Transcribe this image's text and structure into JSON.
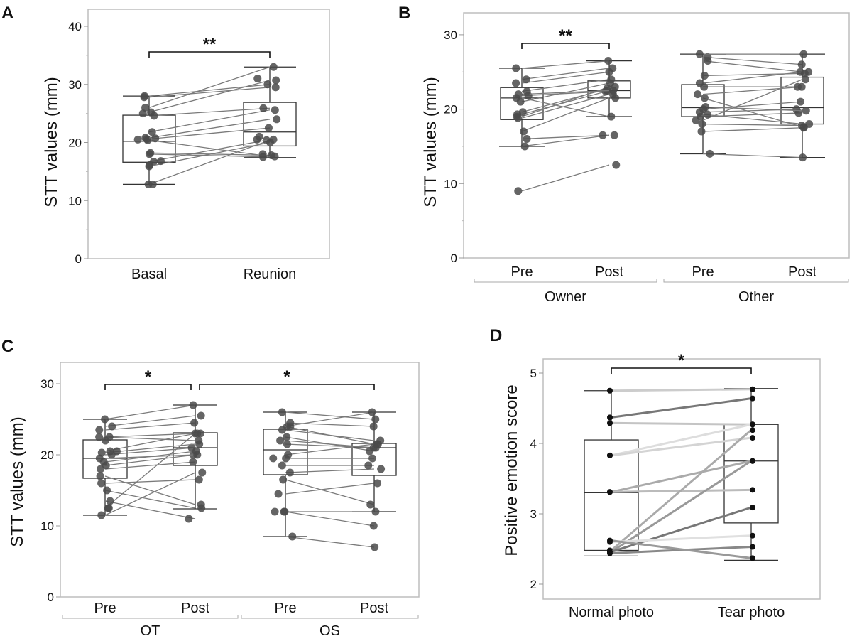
{
  "figure": {
    "panels": [
      "A",
      "B",
      "C",
      "D"
    ]
  },
  "chart_data": [
    {
      "panel": "A",
      "type": "box",
      "title": "",
      "xlabel": "",
      "ylabel": "STT values (mm)",
      "ylim": [
        0,
        42
      ],
      "yticks": [
        0,
        10,
        20,
        30,
        40
      ],
      "grid": false,
      "categories": [
        "Basal",
        "Reunion"
      ],
      "boxes": [
        {
          "category": "Basal",
          "whisker_low": 12.8,
          "q1": 16.6,
          "median": 20.2,
          "q3": 24.7,
          "whisker_high": 28.0
        },
        {
          "category": "Reunion",
          "whisker_low": 17.4,
          "q1": 19.4,
          "median": 21.8,
          "q3": 26.9,
          "whisker_high": 33.0
        }
      ],
      "paired": [
        [
          12.8,
          20.4
        ],
        [
          16.7,
          20.5
        ],
        [
          15.9,
          20.0
        ],
        [
          18.0,
          17.5
        ],
        [
          18.2,
          17.8
        ],
        [
          20.4,
          17.6
        ],
        [
          20.6,
          22.5
        ],
        [
          20.8,
          24.0
        ],
        [
          21.8,
          25.6
        ],
        [
          24.6,
          25.9
        ],
        [
          25.2,
          30.7
        ],
        [
          26.0,
          33.0
        ],
        [
          27.8,
          29.5
        ],
        [
          28.0,
          30.0
        ]
      ],
      "extra_points": [
        {
          "category": "Basal",
          "values": [
            12.8,
            16.1,
            16.8,
            20.7,
            20.5,
            25.0
          ]
        },
        {
          "category": "Reunion",
          "values": [
            21.0,
            31.0,
            20.5,
            18.0
          ]
        }
      ],
      "significance": [
        {
          "from": "Basal",
          "to": "Reunion",
          "label": "**"
        }
      ]
    },
    {
      "panel": "B",
      "type": "box",
      "title": "",
      "xlabel": "",
      "ylabel": "STT values (mm)",
      "ylim": [
        0,
        33
      ],
      "yticks": [
        0,
        10,
        20,
        30
      ],
      "grid": false,
      "categories": [
        "Pre",
        "Post",
        "Pre",
        "Post"
      ],
      "groups": [
        {
          "label": "Owner",
          "categories": [
            "Pre",
            "Post"
          ]
        },
        {
          "label": "Other",
          "categories": [
            "Pre",
            "Post"
          ]
        }
      ],
      "boxes": [
        {
          "category": "Owner Pre",
          "whisker_low": 15.0,
          "q1": 18.6,
          "median": 21.5,
          "q3": 22.9,
          "whisker_high": 25.5
        },
        {
          "category": "Owner Post",
          "whisker_low": 19.0,
          "q1": 21.5,
          "median": 22.5,
          "q3": 23.8,
          "whisker_high": 26.5
        },
        {
          "category": "Other Pre",
          "whisker_low": 14.0,
          "q1": 19.0,
          "median": 20.2,
          "q3": 23.3,
          "whisker_high": 27.4
        },
        {
          "category": "Other Post",
          "whisker_low": 13.5,
          "q1": 18.0,
          "median": 20.2,
          "q3": 24.3,
          "whisker_high": 27.4
        }
      ],
      "paired": [
        {
          "group": "Owner",
          "pairs": [
            [
              9.0,
              12.5
            ],
            [
              15.0,
              16.5
            ],
            [
              16.0,
              16.5
            ],
            [
              17.0,
              21.5
            ],
            [
              18.8,
              22.0
            ],
            [
              19.0,
              23.0
            ],
            [
              19.3,
              22.5
            ],
            [
              19.6,
              22.8
            ],
            [
              21.0,
              23.5
            ],
            [
              21.5,
              19.0
            ],
            [
              21.8,
              22.4
            ],
            [
              22.0,
              22.5
            ],
            [
              22.4,
              24.0
            ],
            [
              23.5,
              25.0
            ],
            [
              24.0,
              25.5
            ],
            [
              25.5,
              26.5
            ]
          ]
        },
        {
          "group": "Other",
          "pairs": [
            [
              14.0,
              13.5
            ],
            [
              17.0,
              17.5
            ],
            [
              18.0,
              17.8
            ],
            [
              18.5,
              24.0
            ],
            [
              19.0,
              19.5
            ],
            [
              19.3,
              18.0
            ],
            [
              19.6,
              20.0
            ],
            [
              20.0,
              21.0
            ],
            [
              20.3,
              19.8
            ],
            [
              21.5,
              17.6
            ],
            [
              22.0,
              23.0
            ],
            [
              23.0,
              23.0
            ],
            [
              23.5,
              25.0
            ],
            [
              24.5,
              24.8
            ],
            [
              26.5,
              25.0
            ],
            [
              27.0,
              26.0
            ],
            [
              27.4,
              27.4
            ]
          ]
        }
      ],
      "significance": [
        {
          "from": "Owner Pre",
          "to": "Owner Post",
          "label": "**"
        }
      ]
    },
    {
      "panel": "C",
      "type": "box",
      "title": "",
      "xlabel": "",
      "ylabel": "STT values (mm)",
      "ylim": [
        0,
        33
      ],
      "yticks": [
        0,
        10,
        20,
        30
      ],
      "grid": false,
      "categories": [
        "Pre",
        "Post",
        "Pre",
        "Post"
      ],
      "groups": [
        {
          "label": "OT",
          "categories": [
            "Pre",
            "Post"
          ]
        },
        {
          "label": "OS",
          "categories": [
            "Pre",
            "Post"
          ]
        }
      ],
      "boxes": [
        {
          "category": "OT Pre",
          "whisker_low": 11.5,
          "q1": 16.7,
          "median": 19.5,
          "q3": 22.1,
          "whisker_high": 25.0
        },
        {
          "category": "OT Post",
          "whisker_low": 12.4,
          "q1": 18.5,
          "median": 21.0,
          "q3": 23.1,
          "whisker_high": 27.0
        },
        {
          "category": "OS Pre",
          "whisker_low": 8.5,
          "q1": 17.2,
          "median": 20.7,
          "q3": 23.6,
          "whisker_high": 26.0
        },
        {
          "category": "OS Post",
          "whisker_low": 12.0,
          "q1": 17.1,
          "median": 21.0,
          "q3": 21.6,
          "whisker_high": 26.0
        }
      ],
      "paired": [
        {
          "group": "OT",
          "pairs": [
            [
              11.5,
              17.5
            ],
            [
              12.5,
              23.0
            ],
            [
              13.5,
              11.0
            ],
            [
              15.0,
              12.5
            ],
            [
              16.0,
              16.5
            ],
            [
              17.0,
              13.0
            ],
            [
              18.0,
              19.0
            ],
            [
              18.5,
              20.0
            ],
            [
              19.0,
              20.5
            ],
            [
              19.5,
              20.0
            ],
            [
              20.0,
              21.0
            ],
            [
              20.3,
              21.5
            ],
            [
              20.5,
              23.0
            ],
            [
              22.5,
              23.0
            ],
            [
              22.5,
              22.0
            ],
            [
              23.5,
              24.5
            ],
            [
              24.0,
              25.5
            ],
            [
              25.0,
              27.0
            ]
          ]
        },
        {
          "group": "OS",
          "pairs": [
            [
              8.5,
              7.0
            ],
            [
              12.0,
              12.0
            ],
            [
              12.0,
              10.0
            ],
            [
              14.5,
              16.0
            ],
            [
              16.5,
              13.0
            ],
            [
              17.5,
              18.0
            ],
            [
              18.5,
              18.5
            ],
            [
              19.5,
              19.5
            ],
            [
              20.0,
              21.5
            ],
            [
              21.5,
              21.0
            ],
            [
              22.0,
              21.0
            ],
            [
              22.5,
              20.5
            ],
            [
              23.5,
              22.0
            ],
            [
              24.0,
              21.5
            ],
            [
              24.0,
              26.0
            ],
            [
              24.5,
              24.0
            ],
            [
              26.0,
              25.0
            ]
          ]
        }
      ],
      "extra_points": [
        {
          "category": "OT Pre",
          "values": [
            12.5,
            22.0,
            20.5
          ]
        },
        {
          "category": "OS Pre",
          "values": [
            12.0,
            19.5
          ]
        }
      ],
      "significance": [
        {
          "from": "OT Pre",
          "to": "OT Post",
          "label": "*"
        },
        {
          "from": "OT Post",
          "to": "OS Post",
          "label": "*"
        }
      ]
    },
    {
      "panel": "D",
      "type": "box",
      "title": "",
      "xlabel": "",
      "ylabel": "Positive emotion score",
      "ylim": [
        1.8,
        5.2
      ],
      "yticks": [
        2,
        3,
        4,
        5
      ],
      "grid": false,
      "categories": [
        "Normal photo",
        "Tear photo"
      ],
      "boxes": [
        {
          "category": "Normal photo",
          "whisker_low": 2.4,
          "q1": 2.48,
          "median": 3.3,
          "q3": 4.05,
          "whisker_high": 4.75
        },
        {
          "category": "Tear photo",
          "whisker_low": 2.34,
          "q1": 2.87,
          "median": 3.75,
          "q3": 4.27,
          "whisker_high": 4.78
        }
      ],
      "paired": [
        {
          "values": [
            4.75,
            4.77
          ],
          "shade": "#cccccc"
        },
        {
          "values": [
            4.37,
            4.64
          ],
          "shade": "#777777"
        },
        {
          "values": [
            4.29,
            4.27
          ],
          "shade": "#c4c4c4"
        },
        {
          "values": [
            3.83,
            4.27
          ],
          "shade": "#dddddd"
        },
        {
          "values": [
            3.83,
            4.08
          ],
          "shade": "#d4d4d4"
        },
        {
          "values": [
            3.31,
            3.75
          ],
          "shade": "#aaaaaa"
        },
        {
          "values": [
            3.31,
            3.34
          ],
          "shade": "#bbbbbb"
        },
        {
          "values": [
            2.48,
            4.19
          ],
          "shade": "#aaaaaa"
        },
        {
          "values": [
            2.46,
            3.75
          ],
          "shade": "#999999"
        },
        {
          "values": [
            2.46,
            3.09
          ],
          "shade": "#777777"
        },
        {
          "values": [
            2.6,
            2.69
          ],
          "shade": "#e0e0e0"
        },
        {
          "values": [
            2.44,
            2.53
          ],
          "shade": "#888888"
        },
        {
          "values": [
            2.62,
            2.37
          ],
          "shade": "#999999"
        }
      ],
      "significance": [
        {
          "from": "Normal photo",
          "to": "Tear photo",
          "label": "*"
        }
      ]
    }
  ]
}
